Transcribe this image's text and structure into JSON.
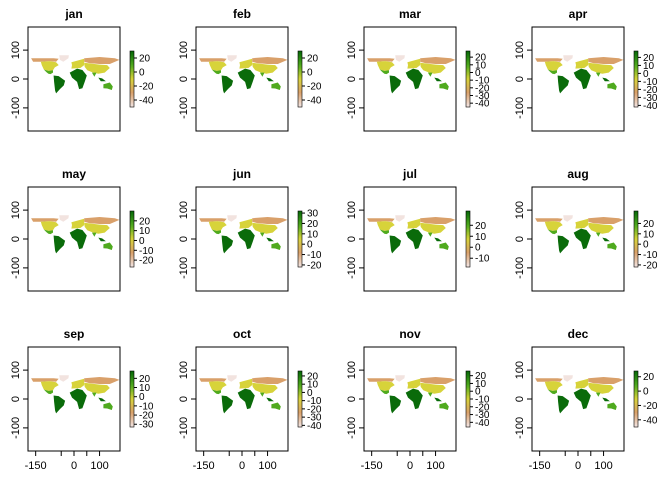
{
  "chart_data": {
    "type": "heatmap",
    "description_free": true,
    "layout": "3x4 small multiples",
    "xlim": [
      -180,
      180
    ],
    "ylim": [
      -180,
      180
    ],
    "x_ticks": [
      -150,
      -50,
      0,
      50,
      100
    ],
    "x_tick_labels": [
      "-150",
      "",
      "0",
      "",
      "100"
    ],
    "y_ticks": [
      100,
      0,
      -100
    ],
    "y_tick_labels": [
      "100",
      "0",
      "-100"
    ],
    "colors": {
      "high": "#0a6b0a",
      "mid_high": "#4faa1e",
      "mid": "#d7d33a",
      "mid_low": "#d9a06a",
      "low": "#f2e3df"
    },
    "panels": [
      {
        "title": "jan",
        "legend_ticks": [
          20,
          0,
          -20,
          -40
        ],
        "legend_range": [
          -50,
          30
        ]
      },
      {
        "title": "feb",
        "legend_ticks": [
          20,
          0,
          -20,
          -40
        ],
        "legend_range": [
          -50,
          30
        ]
      },
      {
        "title": "mar",
        "legend_ticks": [
          20,
          10,
          0,
          -10,
          -20,
          -30,
          -40
        ],
        "legend_range": [
          -45,
          28
        ]
      },
      {
        "title": "apr",
        "legend_ticks": [
          20,
          10,
          0,
          -10,
          -20,
          -30,
          -40
        ],
        "legend_range": [
          -42,
          28
        ]
      },
      {
        "title": "may",
        "legend_ticks": [
          20,
          10,
          0,
          -10,
          -20
        ],
        "legend_range": [
          -27,
          30
        ]
      },
      {
        "title": "jun",
        "legend_ticks": [
          30,
          20,
          10,
          0,
          -10,
          -20
        ],
        "legend_range": [
          -22,
          32
        ]
      },
      {
        "title": "jul",
        "legend_ticks": [
          20,
          10,
          0,
          -10
        ],
        "legend_range": [
          -18,
          33
        ]
      },
      {
        "title": "aug",
        "legend_ticks": [
          20,
          10,
          0,
          -10,
          -20
        ],
        "legend_range": [
          -22,
          32
        ]
      },
      {
        "title": "sep",
        "legend_ticks": [
          20,
          10,
          0,
          -10,
          -20,
          -30
        ],
        "legend_range": [
          -33,
          28
        ]
      },
      {
        "title": "oct",
        "legend_ticks": [
          20,
          10,
          0,
          -10,
          -20,
          -30,
          -40
        ],
        "legend_range": [
          -42,
          26
        ]
      },
      {
        "title": "nov",
        "legend_ticks": [
          20,
          10,
          0,
          -10,
          -20,
          -30,
          -40
        ],
        "legend_range": [
          -46,
          26
        ]
      },
      {
        "title": "dec",
        "legend_ticks": [
          20,
          0,
          -20,
          -40
        ],
        "legend_range": [
          -50,
          28
        ]
      }
    ]
  }
}
